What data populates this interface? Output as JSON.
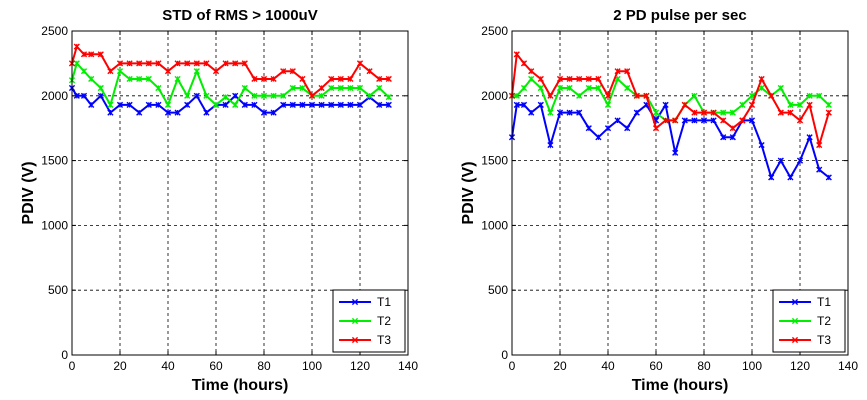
{
  "chart_data": [
    {
      "type": "line",
      "title": "STD of RMS > 1000uV",
      "xlabel": "Time (hours)",
      "ylabel": "PDIV (V)",
      "xlim": [
        0,
        140
      ],
      "ylim": [
        0,
        2500
      ],
      "xticks": [
        "0",
        "20",
        "40",
        "60",
        "80",
        "100",
        "120",
        "140"
      ],
      "yticks": [
        "0",
        "500",
        "1000",
        "1500",
        "2000",
        "2500"
      ],
      "grid": true,
      "legend_position": "bottom-right",
      "series": [
        {
          "name": "T1",
          "color": "#0000ff",
          "x": [
            0,
            2,
            5,
            8,
            12,
            16,
            20,
            24,
            28,
            32,
            36,
            40,
            44,
            48,
            52,
            56,
            60,
            64,
            68,
            72,
            76,
            80,
            84,
            88,
            92,
            96,
            100,
            104,
            108,
            112,
            116,
            120,
            124,
            128,
            132
          ],
          "y": [
            2060,
            2000,
            2000,
            1930,
            2000,
            1870,
            1930,
            1930,
            1870,
            1930,
            1930,
            1870,
            1870,
            1930,
            2000,
            1870,
            1930,
            1930,
            2000,
            1930,
            1930,
            1870,
            1870,
            1930,
            1930,
            1930,
            1930,
            1930,
            1930,
            1930,
            1930,
            1930,
            1990,
            1930,
            1930
          ]
        },
        {
          "name": "T2",
          "color": "#00ee00",
          "x": [
            0,
            2,
            5,
            8,
            12,
            16,
            20,
            24,
            28,
            32,
            36,
            40,
            44,
            48,
            52,
            56,
            60,
            64,
            68,
            72,
            76,
            80,
            84,
            88,
            92,
            96,
            100,
            104,
            108,
            112,
            116,
            120,
            124,
            128,
            132
          ],
          "y": [
            2120,
            2250,
            2190,
            2130,
            2060,
            1930,
            2190,
            2130,
            2130,
            2130,
            2060,
            1930,
            2130,
            2000,
            2190,
            2000,
            1930,
            1990,
            1930,
            2060,
            2000,
            2000,
            2000,
            2000,
            2060,
            2060,
            2000,
            2000,
            2060,
            2060,
            2060,
            2060,
            2000,
            2060,
            1990
          ]
        },
        {
          "name": "T3",
          "color": "#ff0000",
          "x": [
            0,
            2,
            5,
            8,
            12,
            16,
            20,
            24,
            28,
            32,
            36,
            40,
            44,
            48,
            52,
            56,
            60,
            64,
            68,
            72,
            76,
            80,
            84,
            88,
            92,
            96,
            100,
            104,
            108,
            112,
            116,
            120,
            124,
            128,
            132
          ],
          "y": [
            2250,
            2380,
            2320,
            2320,
            2320,
            2190,
            2250,
            2250,
            2250,
            2250,
            2250,
            2190,
            2250,
            2250,
            2250,
            2250,
            2190,
            2250,
            2250,
            2250,
            2130,
            2130,
            2130,
            2190,
            2190,
            2130,
            2000,
            2060,
            2130,
            2130,
            2130,
            2250,
            2190,
            2130,
            2130
          ]
        }
      ]
    },
    {
      "type": "line",
      "title": "2 PD pulse per sec",
      "xlabel": "Time (hours)",
      "ylabel": "PDIV (V)",
      "xlim": [
        0,
        140
      ],
      "ylim": [
        0,
        2500
      ],
      "xticks": [
        "0",
        "20",
        "40",
        "60",
        "80",
        "100",
        "120",
        "140"
      ],
      "yticks": [
        "0",
        "500",
        "1000",
        "1500",
        "2000",
        "2500"
      ],
      "grid": true,
      "legend_position": "bottom-right",
      "series": [
        {
          "name": "T1",
          "color": "#0000ff",
          "x": [
            0,
            2,
            5,
            8,
            12,
            16,
            20,
            24,
            28,
            32,
            36,
            40,
            44,
            48,
            52,
            56,
            60,
            64,
            68,
            72,
            76,
            80,
            84,
            88,
            92,
            96,
            100,
            104,
            108,
            112,
            116,
            120,
            124,
            128,
            132
          ],
          "y": [
            1680,
            1930,
            1930,
            1870,
            1930,
            1620,
            1870,
            1870,
            1870,
            1750,
            1680,
            1750,
            1810,
            1750,
            1870,
            1930,
            1810,
            1930,
            1560,
            1810,
            1810,
            1810,
            1810,
            1680,
            1680,
            1810,
            1810,
            1620,
            1370,
            1500,
            1370,
            1500,
            1680,
            1430,
            1370
          ]
        },
        {
          "name": "T2",
          "color": "#00ee00",
          "x": [
            0,
            2,
            5,
            8,
            12,
            16,
            20,
            24,
            28,
            32,
            36,
            40,
            44,
            48,
            52,
            56,
            60,
            64,
            68,
            72,
            76,
            80,
            84,
            88,
            92,
            96,
            100,
            104,
            108,
            112,
            116,
            120,
            124,
            128,
            132
          ],
          "y": [
            2000,
            2000,
            2060,
            2130,
            2060,
            1870,
            2060,
            2060,
            2000,
            2060,
            2060,
            1930,
            2130,
            2060,
            2000,
            2000,
            1870,
            1810,
            1810,
            1930,
            2000,
            1870,
            1870,
            1870,
            1870,
            1930,
            2000,
            2060,
            2000,
            2060,
            1930,
            1930,
            2000,
            2000,
            1930
          ]
        },
        {
          "name": "T3",
          "color": "#ff0000",
          "x": [
            0,
            2,
            5,
            8,
            12,
            16,
            20,
            24,
            28,
            32,
            36,
            40,
            44,
            48,
            52,
            56,
            60,
            64,
            68,
            72,
            76,
            80,
            84,
            88,
            92,
            96,
            100,
            104,
            108,
            112,
            116,
            120,
            124,
            128,
            132
          ],
          "y": [
            2000,
            2320,
            2250,
            2190,
            2130,
            2000,
            2130,
            2130,
            2130,
            2130,
            2130,
            2000,
            2190,
            2190,
            2000,
            2000,
            1750,
            1810,
            1810,
            1930,
            1870,
            1870,
            1870,
            1810,
            1750,
            1810,
            1930,
            2130,
            2000,
            1870,
            1870,
            1810,
            1930,
            1620,
            1870
          ]
        }
      ]
    }
  ]
}
